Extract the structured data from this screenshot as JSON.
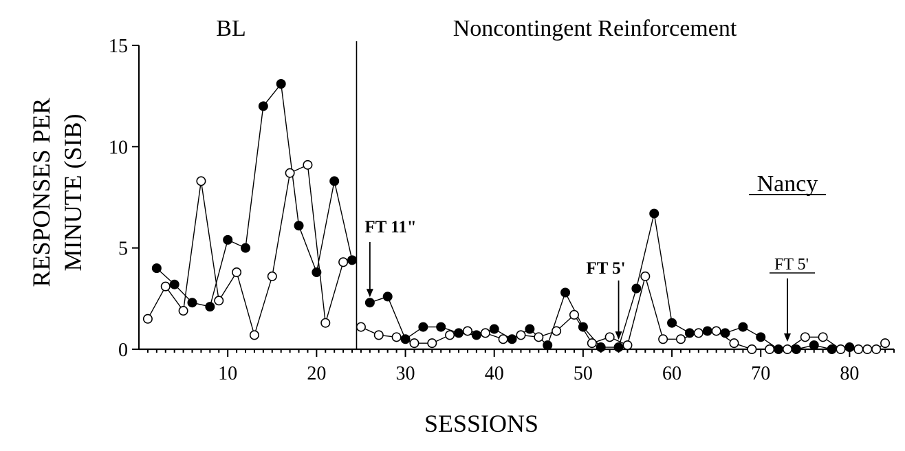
{
  "chart_data": {
    "type": "line",
    "xlabel": "SESSIONS",
    "ylabel_lines": [
      "RESPONSES PER",
      "MINUTE (SIB)"
    ],
    "xlim": [
      0,
      85
    ],
    "ylim": [
      0,
      15
    ],
    "x_ticks": [
      10,
      20,
      30,
      40,
      50,
      60,
      70,
      80
    ],
    "y_ticks": [
      0,
      5,
      10,
      15
    ],
    "phase_change_x": 24.5,
    "phases": [
      "BL",
      "Noncontingent Reinforcement"
    ],
    "participant": "Nancy",
    "annotations": [
      {
        "text": "FT 11\"",
        "x": 26,
        "y": 2.3,
        "style": "bold"
      },
      {
        "text": "FT 5'",
        "x": 54,
        "y": 0.2,
        "style": "bold"
      },
      {
        "text": "FT 5'",
        "x": 73,
        "y": 0.1,
        "style": "underline"
      }
    ],
    "series": [
      {
        "name": "filled",
        "marker": "filled-circle",
        "segments": [
          {
            "x": [
              2,
              4,
              6,
              8,
              10,
              12,
              14,
              16,
              18,
              20,
              22,
              24
            ],
            "y": [
              4.0,
              3.2,
              2.3,
              2.1,
              5.4,
              5.0,
              12.0,
              13.1,
              6.1,
              3.8,
              8.3,
              4.4
            ]
          },
          {
            "x": [
              26,
              28,
              30,
              32,
              34,
              36,
              38,
              40,
              42,
              44,
              46,
              48,
              50,
              52,
              54,
              56,
              58,
              60,
              62,
              64,
              66,
              68,
              70,
              72,
              74,
              76,
              78,
              80
            ],
            "y": [
              2.3,
              2.6,
              0.5,
              1.1,
              1.1,
              0.8,
              0.7,
              1.0,
              0.5,
              1.0,
              0.2,
              2.8,
              1.1,
              0.1,
              0.1,
              3.0,
              6.7,
              1.3,
              0.8,
              0.9,
              0.8,
              1.1,
              0.6,
              0.0,
              0.0,
              0.2,
              0.0,
              0.1
            ]
          }
        ]
      },
      {
        "name": "open",
        "marker": "open-circle",
        "segments": [
          {
            "x": [
              1,
              3,
              5,
              7,
              9,
              11,
              13,
              15,
              17,
              19,
              21,
              23
            ],
            "y": [
              1.5,
              3.1,
              1.9,
              8.3,
              2.4,
              3.8,
              0.7,
              3.6,
              8.7,
              9.1,
              1.3,
              4.3
            ]
          },
          {
            "x": [
              25,
              27,
              29,
              31,
              33,
              35,
              37,
              39,
              41,
              43,
              45,
              47,
              49,
              51,
              53,
              55,
              57,
              59,
              61,
              63,
              65,
              67,
              69,
              71,
              73,
              75,
              77,
              79,
              81,
              82,
              83,
              84
            ],
            "y": [
              1.1,
              0.7,
              0.6,
              0.3,
              0.3,
              0.7,
              0.9,
              0.8,
              0.5,
              0.7,
              0.6,
              0.9,
              1.7,
              0.3,
              0.6,
              0.2,
              3.6,
              0.5,
              0.5,
              0.8,
              0.9,
              0.3,
              0.0,
              0.0,
              0.0,
              0.6,
              0.6,
              0.0,
              0.0,
              0.0,
              0.0,
              0.3
            ]
          }
        ]
      }
    ]
  }
}
